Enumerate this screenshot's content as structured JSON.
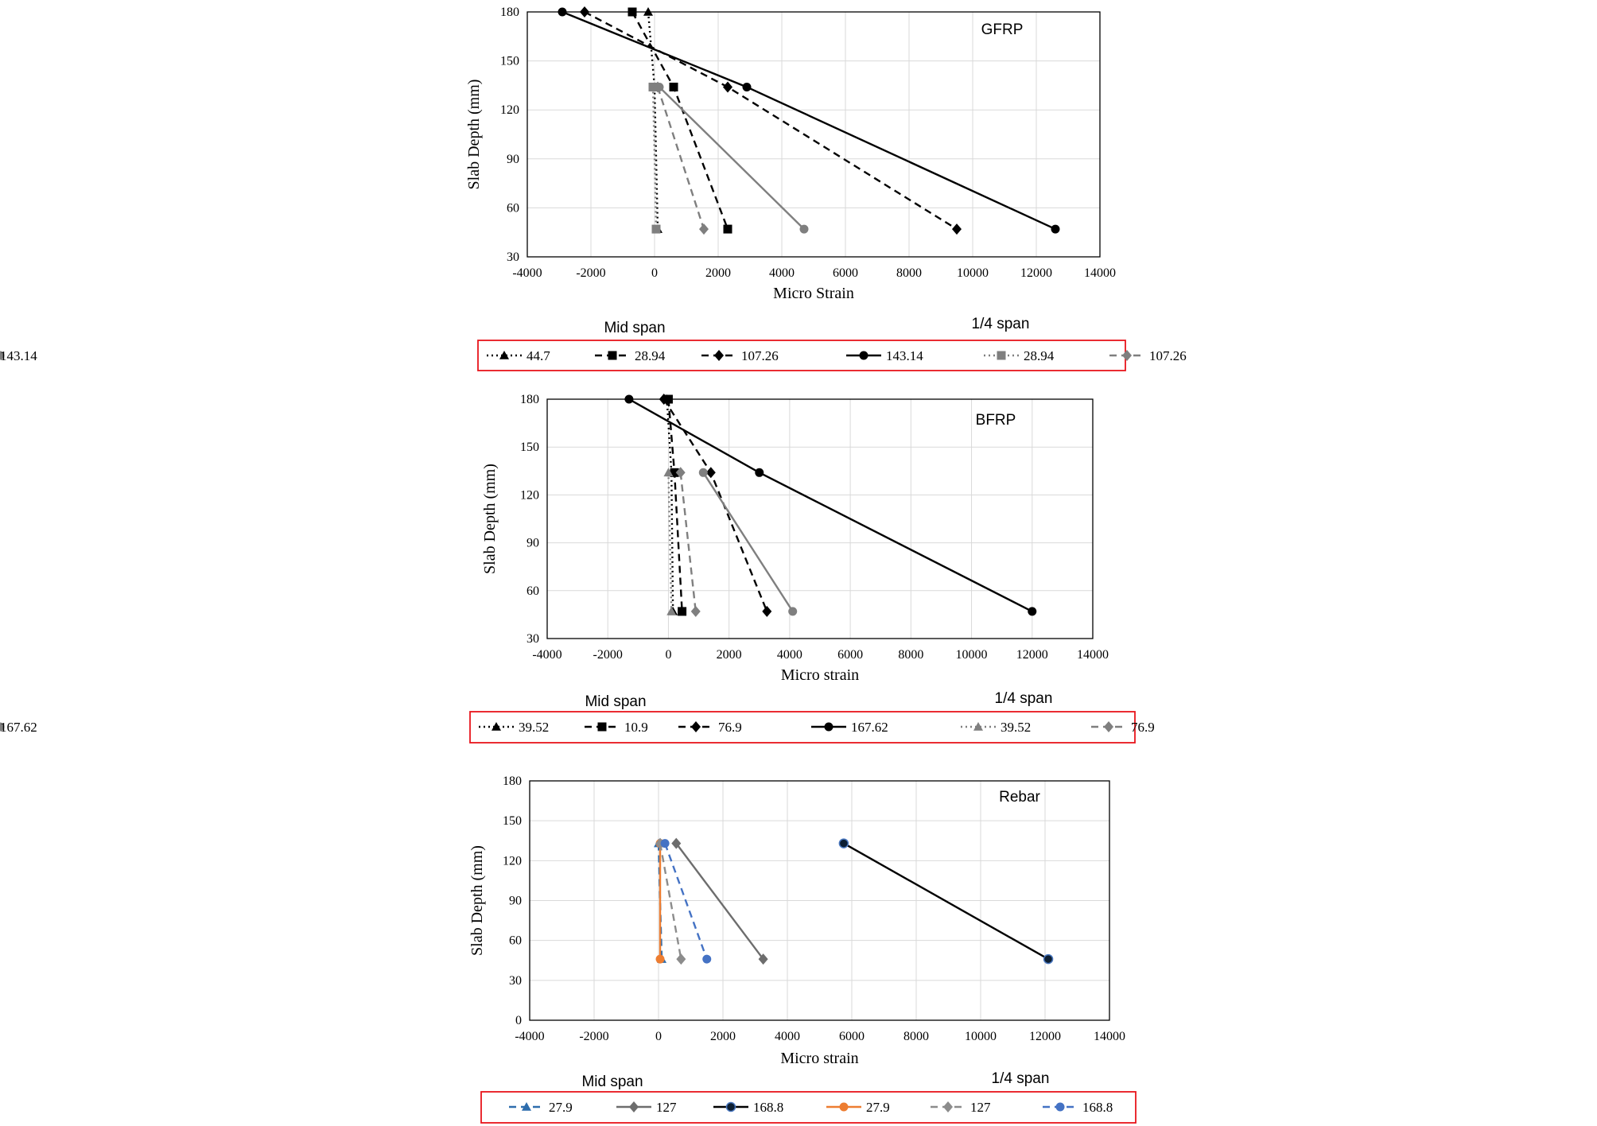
{
  "chart_data": [
    {
      "type": "line",
      "title": "GFRP",
      "xlabel": "Micro Strain",
      "ylabel": "Slab Depth (mm)",
      "xlim": [
        -4000,
        14000
      ],
      "ylim": [
        30,
        180
      ],
      "xticks": [
        -4000,
        -2000,
        0,
        2000,
        4000,
        6000,
        8000,
        10000,
        12000,
        14000
      ],
      "yticks": [
        30,
        60,
        90,
        120,
        150,
        180
      ],
      "grid": true,
      "legend_position": "bottom",
      "legend_groups": [
        "Mid span",
        "1/4 span"
      ],
      "series": [
        {
          "name": "44.7",
          "group": 0,
          "color": "#000000",
          "dash": "dotted",
          "marker": "triangle",
          "x": [
            -200,
            0,
            100
          ],
          "y": [
            180,
            134,
            47
          ]
        },
        {
          "name": "28.94",
          "group": 0,
          "color": "#000000",
          "dash": "dashed",
          "marker": "square",
          "x": [
            -700,
            600,
            2300
          ],
          "y": [
            180,
            134,
            47
          ]
        },
        {
          "name": "107.26",
          "group": 0,
          "color": "#000000",
          "dash": "dashed",
          "marker": "diamond",
          "x": [
            -2200,
            2300,
            9500
          ],
          "y": [
            180,
            134,
            47
          ]
        },
        {
          "name": "143.14",
          "group": 0,
          "color": "#000000",
          "dash": "solid",
          "marker": "circle",
          "x": [
            -2900,
            2900,
            12600
          ],
          "y": [
            180,
            134,
            47
          ]
        },
        {
          "name": "28.94",
          "group": 1,
          "color": "#7f7f7f",
          "dash": "dotted",
          "marker": "square",
          "x": [
            -50,
            50
          ],
          "y": [
            134,
            47
          ]
        },
        {
          "name": "107.26",
          "group": 1,
          "color": "#7f7f7f",
          "dash": "dashed",
          "marker": "diamond",
          "x": [
            100,
            1550
          ],
          "y": [
            134,
            47
          ]
        },
        {
          "name": "143.14",
          "group": 1,
          "color": "#7f7f7f",
          "dash": "solid",
          "marker": "circle",
          "x": [
            150,
            4700
          ],
          "y": [
            134,
            47
          ]
        }
      ]
    },
    {
      "type": "line",
      "title": "BFRP",
      "xlabel": "Micro strain",
      "ylabel": "Slab Depth (mm)",
      "xlim": [
        -4000,
        14000
      ],
      "ylim": [
        30,
        180
      ],
      "xticks": [
        -4000,
        -2000,
        0,
        2000,
        4000,
        6000,
        8000,
        10000,
        12000,
        14000
      ],
      "yticks": [
        30,
        60,
        90,
        120,
        150,
        180
      ],
      "grid": true,
      "legend_position": "bottom",
      "legend_groups": [
        "Mid span",
        "1/4 span"
      ],
      "series": [
        {
          "name": "39.52",
          "group": 0,
          "color": "#000000",
          "dash": "dotted",
          "marker": "triangle",
          "x": [
            -50,
            100,
            150
          ],
          "y": [
            180,
            134,
            47
          ]
        },
        {
          "name": "10.9",
          "group": 0,
          "color": "#000000",
          "dash": "dashed",
          "marker": "square",
          "x": [
            0,
            200,
            450
          ],
          "y": [
            180,
            134,
            47
          ]
        },
        {
          "name": "76.9",
          "group": 0,
          "color": "#000000",
          "dash": "dashed",
          "marker": "diamond",
          "x": [
            -150,
            1400,
            3250
          ],
          "y": [
            180,
            134,
            47
          ]
        },
        {
          "name": "167.62",
          "group": 0,
          "color": "#000000",
          "dash": "solid",
          "marker": "circle",
          "x": [
            -1300,
            3000,
            12000
          ],
          "y": [
            180,
            134,
            47
          ]
        },
        {
          "name": "39.52",
          "group": 1,
          "color": "#7f7f7f",
          "dash": "dotted",
          "marker": "triangle",
          "x": [
            0,
            100
          ],
          "y": [
            134,
            47
          ]
        },
        {
          "name": "76.9",
          "group": 1,
          "color": "#7f7f7f",
          "dash": "dashed",
          "marker": "diamond",
          "x": [
            400,
            900
          ],
          "y": [
            134,
            47
          ]
        },
        {
          "name": "167.62",
          "group": 1,
          "color": "#7f7f7f",
          "dash": "solid",
          "marker": "circle",
          "x": [
            1150,
            4100
          ],
          "y": [
            134,
            47
          ]
        }
      ]
    },
    {
      "type": "line",
      "title": "Rebar",
      "xlabel": "Micro strain",
      "ylabel": "Slab Depth (mm)",
      "xlim": [
        -4000,
        14000
      ],
      "ylim": [
        0,
        180
      ],
      "xticks": [
        -4000,
        -2000,
        0,
        2000,
        4000,
        6000,
        8000,
        10000,
        12000,
        14000
      ],
      "yticks": [
        0,
        30,
        60,
        90,
        120,
        150,
        180
      ],
      "grid": true,
      "legend_position": "bottom",
      "legend_groups": [
        "Mid span",
        "1/4 span"
      ],
      "series": [
        {
          "name": "27.9",
          "group": 0,
          "color": "#2e6dad",
          "dash": "dashed",
          "marker": "triangle",
          "x": [
            0,
            100
          ],
          "y": [
            133,
            46
          ]
        },
        {
          "name": "127",
          "group": 0,
          "color": "#6d6d6d",
          "dash": "solid",
          "marker": "diamond",
          "x": [
            550,
            3250
          ],
          "y": [
            133,
            46
          ]
        },
        {
          "name": "168.8",
          "group": 0,
          "color": "#000000",
          "dash": "solid",
          "marker": "circle-dark",
          "x": [
            5750,
            12100
          ],
          "y": [
            133,
            46
          ]
        },
        {
          "name": "27.9",
          "group": 1,
          "color": "#ed7d31",
          "dash": "solid",
          "marker": "circle",
          "x": [
            50,
            50
          ],
          "y": [
            133,
            46
          ]
        },
        {
          "name": "127",
          "group": 1,
          "color": "#8c8c8c",
          "dash": "dashed",
          "marker": "diamond",
          "x": [
            50,
            700
          ],
          "y": [
            133,
            46
          ]
        },
        {
          "name": "168.8",
          "group": 1,
          "color": "#4472c4",
          "dash": "dashed",
          "marker": "circle",
          "x": [
            200,
            1500
          ],
          "y": [
            133,
            46
          ]
        }
      ]
    }
  ]
}
